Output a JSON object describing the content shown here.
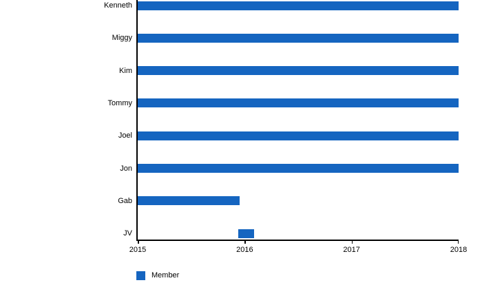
{
  "colors": {
    "bar": "#1565c0",
    "axis": "#000000",
    "text": "#000000",
    "background": "#ffffff"
  },
  "legend": {
    "label": "Member"
  },
  "chart_data": {
    "type": "bar",
    "subtype": "horizontal-range-timeline",
    "title": "",
    "xlabel": "",
    "ylabel": "",
    "categories": [
      "Kenneth",
      "Miggy",
      "Kim",
      "Tommy",
      "Joel",
      "Jon",
      "Gab",
      "JV"
    ],
    "series": [
      {
        "name": "Member",
        "color": "#1565c0",
        "ranges": [
          [
            2015,
            2018
          ],
          [
            2015,
            2018
          ],
          [
            2015,
            2018
          ],
          [
            2015,
            2018
          ],
          [
            2015,
            2018
          ],
          [
            2015,
            2018
          ],
          [
            2015,
            2015.95
          ],
          [
            2015.94,
            2016.09
          ]
        ]
      }
    ],
    "xlim": [
      2015,
      2018
    ],
    "x_ticks": [
      2015,
      2016,
      2017,
      2018
    ],
    "x_tick_labels": [
      "2015",
      "2016",
      "2017",
      "2018"
    ],
    "grid": false,
    "legend": {
      "position": "bottom-left",
      "entries": [
        "Member"
      ]
    }
  }
}
